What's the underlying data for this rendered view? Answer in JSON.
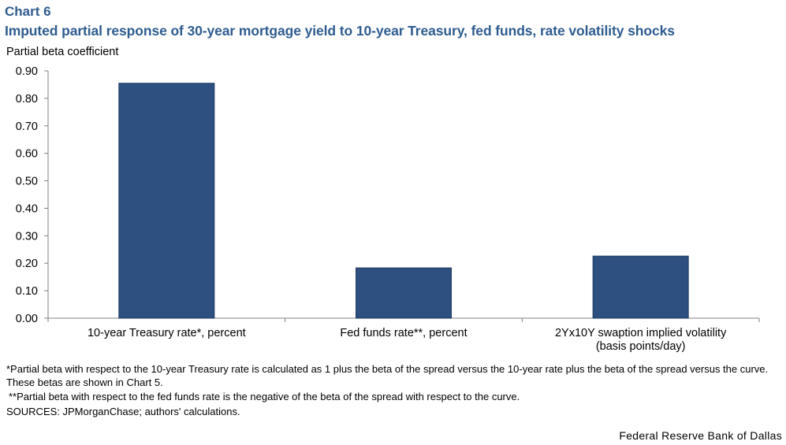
{
  "header": {
    "chart_number": "Chart 6",
    "title": "Imputed partial response of 30-year mortgage yield to 10-year Treasury, fed funds, rate volatility shocks"
  },
  "chart_data": {
    "type": "bar",
    "categories": [
      [
        "10-year Treasury rate*, percent"
      ],
      [
        "Fed funds rate**, percent"
      ],
      [
        "2Yx10Y swaption implied volatility",
        "(basis points/day)"
      ]
    ],
    "values": [
      0.855,
      0.183,
      0.226
    ],
    "ylabel": "Partial beta coefficient",
    "xlabel": "",
    "ylim": [
      0,
      0.9
    ],
    "yticks": [
      "0.00",
      "0.10",
      "0.20",
      "0.30",
      "0.40",
      "0.50",
      "0.60",
      "0.70",
      "0.80",
      "0.90"
    ],
    "bar_color": "#2d5080",
    "grid": false,
    "legend": "none"
  },
  "footnotes": {
    "note1": "*Partial beta with respect to the 10-year Treasury rate is calculated as 1 plus the beta of the spread versus the 10-year rate plus the beta of the spread versus the curve. These betas are shown in Chart 5.",
    "note2": "**Partial beta with respect to the fed funds rate is the negative of the beta of the spread with respect to the curve.",
    "sources": "SOURCES: JPMorganChase; authors' calculations."
  },
  "credit": "Federal Reserve Bank of Dallas"
}
